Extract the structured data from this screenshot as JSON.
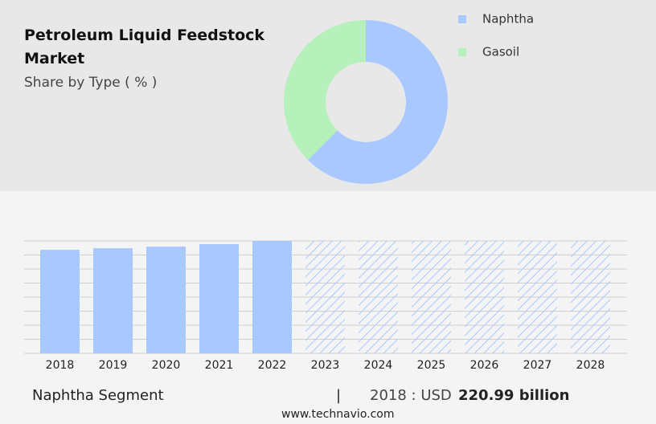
{
  "chart_data": [
    {
      "type": "pie",
      "title": "Petroleum Liquid Feedstock Market",
      "subtitle": "Share by Type ( % )",
      "donut": true,
      "categories": [
        "Naphtha",
        "Gasoil"
      ],
      "values": [
        62.5,
        37.5
      ],
      "colors": [
        "#a8c8ff",
        "#b6f0bb"
      ]
    },
    {
      "type": "bar",
      "categories": [
        "2018",
        "2019",
        "2020",
        "2021",
        "2022",
        "2023",
        "2024",
        "2025",
        "2026",
        "2027",
        "2028"
      ],
      "values": [
        220.99,
        224.4,
        227.8,
        233.1,
        240,
        240,
        240,
        240,
        240,
        240,
        240
      ],
      "hatched": [
        false,
        false,
        false,
        false,
        false,
        true,
        true,
        true,
        true,
        true,
        true
      ],
      "color": "#a8c8ff",
      "ylim": [
        0,
        240
      ],
      "yticks": [
        0,
        30,
        60,
        90,
        120,
        150,
        180,
        210,
        240
      ],
      "show_ytick_labels": false,
      "grid": true
    }
  ],
  "footer": {
    "segment": "Naphtha Segment",
    "separator": "|",
    "year_label": "2018 : USD",
    "value": "220.99 billion",
    "website": "www.technavio.com"
  }
}
